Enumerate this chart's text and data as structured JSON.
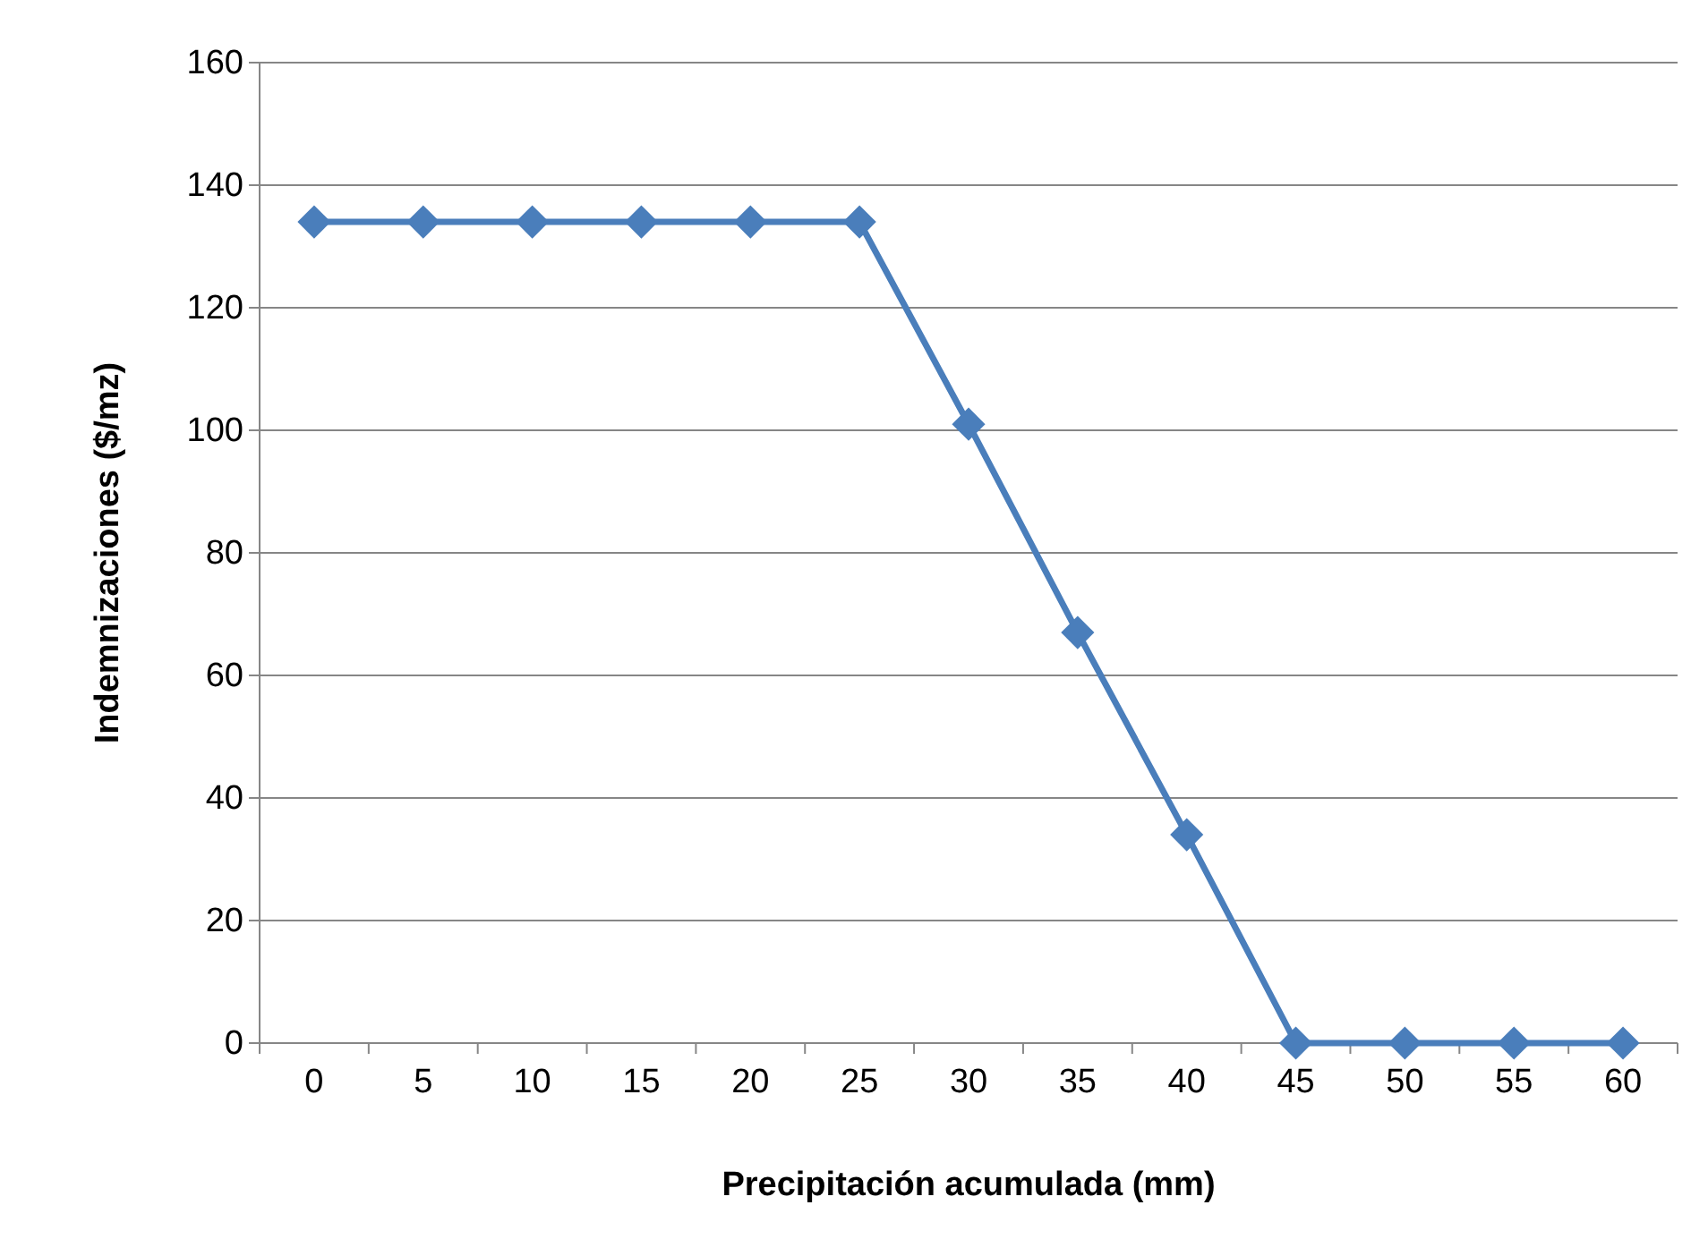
{
  "chart_data": {
    "type": "line",
    "xlabel": "Precipitación acumulada (mm)",
    "ylabel": "Indemnizaciones ($/mz)",
    "categories": [
      "0",
      "5",
      "10",
      "15",
      "20",
      "25",
      "30",
      "35",
      "40",
      "45",
      "50",
      "55",
      "60"
    ],
    "series": [
      {
        "color": "#4a7ebb",
        "values": [
          134,
          134,
          134,
          134,
          134,
          134,
          101,
          67,
          34,
          0,
          0,
          0,
          0
        ]
      }
    ],
    "ylim": [
      0,
      160
    ],
    "yticks": [
      0,
      20,
      40,
      60,
      80,
      100,
      120,
      140,
      160
    ],
    "grid": "y",
    "marker": "diamond",
    "line_style": "solid"
  }
}
